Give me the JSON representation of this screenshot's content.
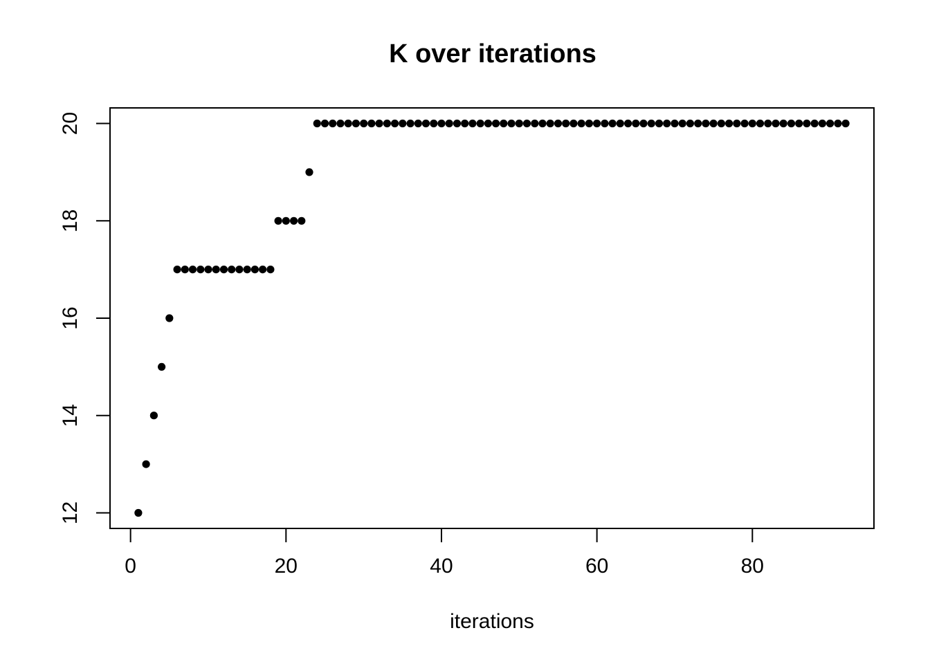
{
  "chart_data": {
    "type": "scatter",
    "title": "K over iterations",
    "xlabel": "iterations",
    "ylabel": "",
    "x": [
      1,
      2,
      3,
      4,
      5,
      6,
      7,
      8,
      9,
      10,
      11,
      12,
      13,
      14,
      15,
      16,
      17,
      18,
      19,
      20,
      21,
      22,
      23,
      24,
      25,
      26,
      27,
      28,
      29,
      30,
      31,
      32,
      33,
      34,
      35,
      36,
      37,
      38,
      39,
      40,
      41,
      42,
      43,
      44,
      45,
      46,
      47,
      48,
      49,
      50,
      51,
      52,
      53,
      54,
      55,
      56,
      57,
      58,
      59,
      60,
      61,
      62,
      63,
      64,
      65,
      66,
      67,
      68,
      69,
      70,
      71,
      72,
      73,
      74,
      75,
      76,
      77,
      78,
      79,
      80,
      81,
      82,
      83,
      84,
      85,
      86,
      87,
      88,
      89,
      90,
      91,
      92
    ],
    "y": [
      12,
      13,
      14,
      15,
      16,
      17,
      17,
      17,
      17,
      17,
      17,
      17,
      17,
      17,
      17,
      17,
      17,
      17,
      18,
      18,
      18,
      18,
      19,
      20,
      20,
      20,
      20,
      20,
      20,
      20,
      20,
      20,
      20,
      20,
      20,
      20,
      20,
      20,
      20,
      20,
      20,
      20,
      20,
      20,
      20,
      20,
      20,
      20,
      20,
      20,
      20,
      20,
      20,
      20,
      20,
      20,
      20,
      20,
      20,
      20,
      20,
      20,
      20,
      20,
      20,
      20,
      20,
      20,
      20,
      20,
      20,
      20,
      20,
      20,
      20,
      20,
      20,
      20,
      20,
      20,
      20,
      20,
      20,
      20,
      20,
      20,
      20,
      20,
      20,
      20,
      20,
      20
    ],
    "xticks": [
      0,
      20,
      40,
      60,
      80
    ],
    "yticks": [
      12,
      14,
      16,
      18,
      20
    ],
    "xlim": [
      -2.64,
      95.64
    ],
    "ylim": [
      11.68,
      20.32
    ],
    "grid": false,
    "legend": false,
    "marker": "filled-circle",
    "marker_color": "#000000",
    "axis_color": "#000000",
    "background": "#ffffff"
  }
}
